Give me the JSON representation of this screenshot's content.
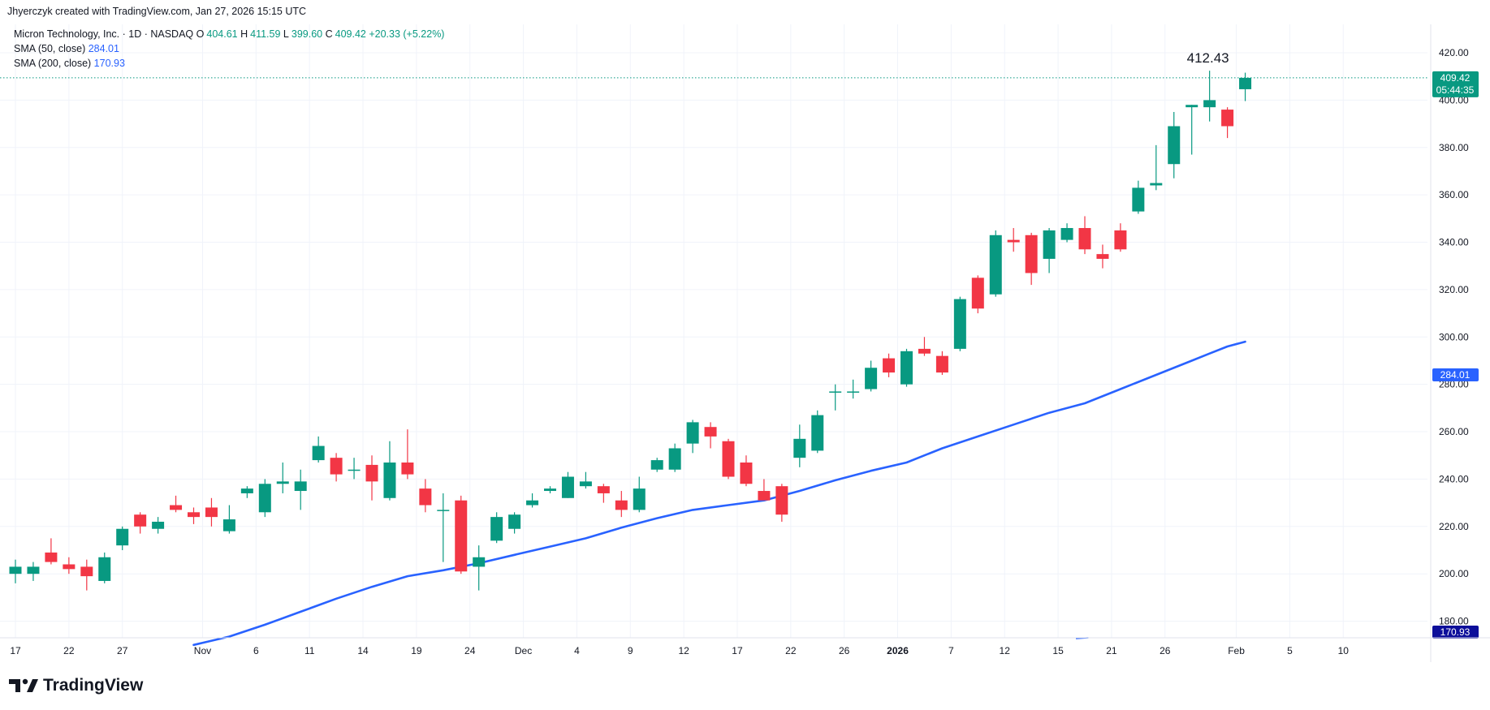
{
  "attribution": "Jhyerczyk created with TradingView.com, Jan 27, 2026 15:15 UTC",
  "legend": {
    "symbol": "Micron Technology, Inc. · 1D · NASDAQ",
    "open_label": "O",
    "open": "404.61",
    "high_label": "H",
    "high": "411.59",
    "low_label": "L",
    "low": "399.60",
    "close_label": "C",
    "close": "409.42",
    "change": "+20.33 (+5.22%)",
    "sma50_label": "SMA (50, close)",
    "sma50_value": "284.01",
    "sma200_label": "SMA (200, close)",
    "sma200_value": "170.93"
  },
  "brand": "TradingView",
  "colors": {
    "up": "#089981",
    "down": "#f23645",
    "sma": "#2962ff",
    "grid": "#f0f3fa"
  },
  "chart_data": {
    "type": "candlestick",
    "ylim": [
      173,
      432
    ],
    "y_ticks": [
      "180.00",
      "200.00",
      "220.00",
      "240.00",
      "260.00",
      "280.00",
      "300.00",
      "320.00",
      "340.00",
      "360.00",
      "380.00",
      "400.00",
      "420.00"
    ],
    "x_ticks": [
      {
        "i": 0,
        "label": "17"
      },
      {
        "i": 3,
        "label": "22"
      },
      {
        "i": 6,
        "label": "27"
      },
      {
        "i": 10.5,
        "label": "Nov"
      },
      {
        "i": 13.5,
        "label": "6"
      },
      {
        "i": 16.5,
        "label": "11"
      },
      {
        "i": 19.5,
        "label": "14"
      },
      {
        "i": 22.5,
        "label": "19"
      },
      {
        "i": 25.5,
        "label": "24"
      },
      {
        "i": 28.5,
        "label": "Dec"
      },
      {
        "i": 31.5,
        "label": "4"
      },
      {
        "i": 34.5,
        "label": "9"
      },
      {
        "i": 37.5,
        "label": "12"
      },
      {
        "i": 40.5,
        "label": "17"
      },
      {
        "i": 43.5,
        "label": "22"
      },
      {
        "i": 46.5,
        "label": "26"
      },
      {
        "i": 49.5,
        "label": "2026"
      },
      {
        "i": 52.5,
        "label": "7"
      },
      {
        "i": 55.5,
        "label": "12"
      },
      {
        "i": 58.5,
        "label": "15"
      },
      {
        "i": 61.5,
        "label": "21"
      },
      {
        "i": 64.5,
        "label": "26"
      },
      {
        "i": 68.5,
        "label": "Feb"
      },
      {
        "i": 71.5,
        "label": "5"
      },
      {
        "i": 74.5,
        "label": "10"
      }
    ],
    "candles": [
      {
        "o": 200,
        "h": 206,
        "l": 196,
        "c": 203
      },
      {
        "o": 200,
        "h": 205,
        "l": 197,
        "c": 203
      },
      {
        "o": 209,
        "h": 215,
        "l": 204,
        "c": 205
      },
      {
        "o": 204,
        "h": 207,
        "l": 200,
        "c": 202
      },
      {
        "o": 203,
        "h": 206,
        "l": 193,
        "c": 199
      },
      {
        "o": 197,
        "h": 209,
        "l": 196,
        "c": 207
      },
      {
        "o": 212,
        "h": 220,
        "l": 210,
        "c": 219
      },
      {
        "o": 225,
        "h": 226,
        "l": 217,
        "c": 220
      },
      {
        "o": 219,
        "h": 224,
        "l": 217,
        "c": 222
      },
      {
        "o": 229,
        "h": 233,
        "l": 226,
        "c": 227
      },
      {
        "o": 226,
        "h": 228,
        "l": 221,
        "c": 224
      },
      {
        "o": 228,
        "h": 232,
        "l": 220,
        "c": 224
      },
      {
        "o": 218,
        "h": 229,
        "l": 217,
        "c": 223
      },
      {
        "o": 234,
        "h": 237,
        "l": 232,
        "c": 236
      },
      {
        "o": 226,
        "h": 240,
        "l": 224,
        "c": 238
      },
      {
        "o": 238,
        "h": 247,
        "l": 234,
        "c": 239
      },
      {
        "o": 235,
        "h": 244,
        "l": 227,
        "c": 239
      },
      {
        "o": 248,
        "h": 258,
        "l": 247,
        "c": 254
      },
      {
        "o": 249,
        "h": 251,
        "l": 239,
        "c": 242
      },
      {
        "o": 244,
        "h": 249,
        "l": 240,
        "c": 244
      },
      {
        "o": 246,
        "h": 250,
        "l": 231,
        "c": 239
      },
      {
        "o": 232,
        "h": 256,
        "l": 231,
        "c": 247
      },
      {
        "o": 247,
        "h": 261,
        "l": 240,
        "c": 242
      },
      {
        "o": 236,
        "h": 240,
        "l": 226,
        "c": 229
      },
      {
        "o": 227,
        "h": 234,
        "l": 205,
        "c": 227
      },
      {
        "o": 231,
        "h": 233,
        "l": 200,
        "c": 201
      },
      {
        "o": 203,
        "h": 212,
        "l": 193,
        "c": 207
      },
      {
        "o": 214,
        "h": 226,
        "l": 213,
        "c": 224
      },
      {
        "o": 219,
        "h": 226,
        "l": 217,
        "c": 225
      },
      {
        "o": 229,
        "h": 234,
        "l": 228,
        "c": 231
      },
      {
        "o": 235,
        "h": 237,
        "l": 234,
        "c": 236
      },
      {
        "o": 232,
        "h": 243,
        "l": 232,
        "c": 241
      },
      {
        "o": 237,
        "h": 243,
        "l": 236,
        "c": 239
      },
      {
        "o": 237,
        "h": 238,
        "l": 230,
        "c": 234
      },
      {
        "o": 231,
        "h": 235,
        "l": 224,
        "c": 227
      },
      {
        "o": 227,
        "h": 241,
        "l": 226,
        "c": 236
      },
      {
        "o": 244,
        "h": 249,
        "l": 243,
        "c": 248
      },
      {
        "o": 244,
        "h": 255,
        "l": 243,
        "c": 253
      },
      {
        "o": 255,
        "h": 265,
        "l": 251,
        "c": 264
      },
      {
        "o": 262,
        "h": 264,
        "l": 253,
        "c": 258
      },
      {
        "o": 256,
        "h": 257,
        "l": 240,
        "c": 241
      },
      {
        "o": 247,
        "h": 250,
        "l": 237,
        "c": 238
      },
      {
        "o": 235,
        "h": 240,
        "l": 232,
        "c": 231
      },
      {
        "o": 237,
        "h": 238,
        "l": 222,
        "c": 225
      },
      {
        "o": 249,
        "h": 263,
        "l": 245,
        "c": 257
      },
      {
        "o": 252,
        "h": 269,
        "l": 251,
        "c": 267
      },
      {
        "o": 277,
        "h": 280,
        "l": 269,
        "c": 277
      },
      {
        "o": 277,
        "h": 282,
        "l": 274,
        "c": 277
      },
      {
        "o": 278,
        "h": 290,
        "l": 277,
        "c": 287
      },
      {
        "o": 291,
        "h": 293,
        "l": 283,
        "c": 285
      },
      {
        "o": 280,
        "h": 295,
        "l": 279,
        "c": 294
      },
      {
        "o": 295,
        "h": 300,
        "l": 292,
        "c": 293
      },
      {
        "o": 292,
        "h": 294,
        "l": 284,
        "c": 285
      },
      {
        "o": 295,
        "h": 317,
        "l": 294,
        "c": 316
      },
      {
        "o": 325,
        "h": 326,
        "l": 310,
        "c": 312
      },
      {
        "o": 318,
        "h": 345,
        "l": 317,
        "c": 343
      },
      {
        "o": 341,
        "h": 346,
        "l": 336,
        "c": 340
      },
      {
        "o": 343,
        "h": 344,
        "l": 322,
        "c": 327
      },
      {
        "o": 333,
        "h": 346,
        "l": 327,
        "c": 345
      },
      {
        "o": 341,
        "h": 348,
        "l": 340,
        "c": 346
      },
      {
        "o": 346,
        "h": 351,
        "l": 335,
        "c": 337
      },
      {
        "o": 335,
        "h": 339,
        "l": 329,
        "c": 333
      },
      {
        "o": 345,
        "h": 348,
        "l": 336,
        "c": 337
      },
      {
        "o": 353,
        "h": 366,
        "l": 352,
        "c": 363
      },
      {
        "o": 364,
        "h": 381,
        "l": 362,
        "c": 365
      },
      {
        "o": 373,
        "h": 395,
        "l": 367,
        "c": 389
      },
      {
        "o": 397,
        "h": 398,
        "l": 377,
        "c": 398
      },
      {
        "o": 397,
        "h": 412.43,
        "l": 391,
        "c": 400
      },
      {
        "o": 396,
        "h": 397,
        "l": 384,
        "c": 389
      },
      {
        "o": 404.61,
        "h": 411.59,
        "l": 399.6,
        "c": 409.42
      }
    ],
    "sma50": {
      "name": "SMA (50, close)",
      "points": [
        [
          10,
          170
        ],
        [
          12,
          173.5
        ],
        [
          14,
          178.5
        ],
        [
          16,
          184
        ],
        [
          18,
          189.5
        ],
        [
          20,
          194.5
        ],
        [
          22,
          199
        ],
        [
          24,
          201.5
        ],
        [
          26,
          204.5
        ],
        [
          28,
          208
        ],
        [
          30,
          211.5
        ],
        [
          32,
          215
        ],
        [
          34,
          219.5
        ],
        [
          36,
          223.5
        ],
        [
          38,
          227
        ],
        [
          40,
          229
        ],
        [
          42,
          231
        ],
        [
          44,
          235
        ],
        [
          46,
          239.5
        ],
        [
          48,
          243.5
        ],
        [
          50,
          247
        ],
        [
          52,
          253
        ],
        [
          54,
          258
        ],
        [
          56,
          263
        ],
        [
          58,
          268
        ],
        [
          60,
          272
        ],
        [
          62,
          278
        ],
        [
          64,
          284
        ],
        [
          66,
          290
        ],
        [
          67,
          293
        ],
        [
          68,
          296
        ],
        [
          69,
          298
        ]
      ]
    },
    "last_price": "409.42",
    "countdown": "05:44:35",
    "sma50_badge": "284.01",
    "sma200_badge": "170.93",
    "high_annotation": "412.43"
  }
}
